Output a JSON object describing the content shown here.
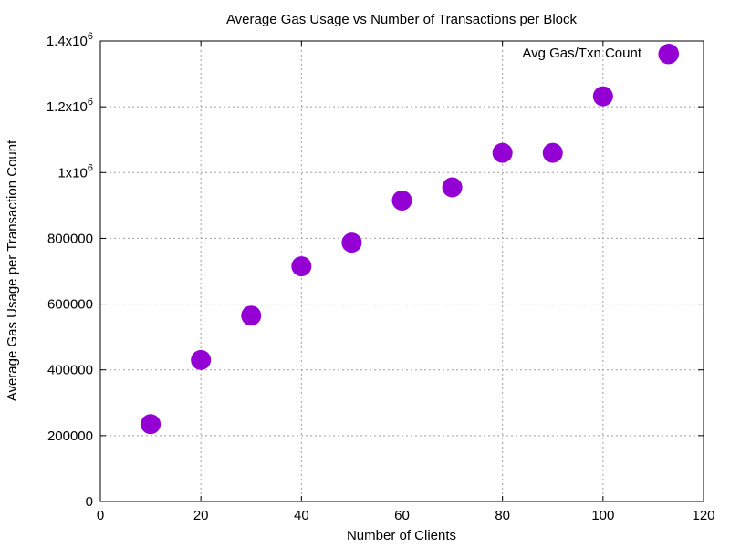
{
  "chart_data": {
    "type": "scatter",
    "title": "Average Gas Usage vs Number of Transactions per Block",
    "xlabel": "Number of Clients",
    "ylabel": "Average Gas Usage per Transaction Count",
    "xlim": [
      0,
      120
    ],
    "ylim": [
      0,
      1400000
    ],
    "grid": true,
    "legend_position": "top-right",
    "x_ticks": [
      {
        "value": 0,
        "label": "0"
      },
      {
        "value": 20,
        "label": "20"
      },
      {
        "value": 40,
        "label": "40"
      },
      {
        "value": 60,
        "label": "60"
      },
      {
        "value": 80,
        "label": "80"
      },
      {
        "value": 100,
        "label": "100"
      },
      {
        "value": 120,
        "label": "120"
      }
    ],
    "y_ticks": [
      {
        "value": 0,
        "label": "0"
      },
      {
        "value": 200000,
        "label": "200000"
      },
      {
        "value": 400000,
        "label": "400000"
      },
      {
        "value": 600000,
        "label": "600000"
      },
      {
        "value": 800000,
        "label": "800000"
      },
      {
        "value": 1000000,
        "label": "1x10",
        "exponent": "6"
      },
      {
        "value": 1200000,
        "label": "1.2x10",
        "exponent": "6"
      },
      {
        "value": 1400000,
        "label": "1.4x10",
        "exponent": "6"
      }
    ],
    "series": [
      {
        "name": "Avg Gas/Txn Count",
        "color": "#9400d3",
        "x": [
          10,
          20,
          30,
          40,
          50,
          60,
          70,
          80,
          90,
          100,
          113
        ],
        "y": [
          235000,
          430000,
          565000,
          715000,
          787000,
          915000,
          955000,
          1060000,
          1060000,
          1232000,
          1360000
        ]
      }
    ]
  }
}
